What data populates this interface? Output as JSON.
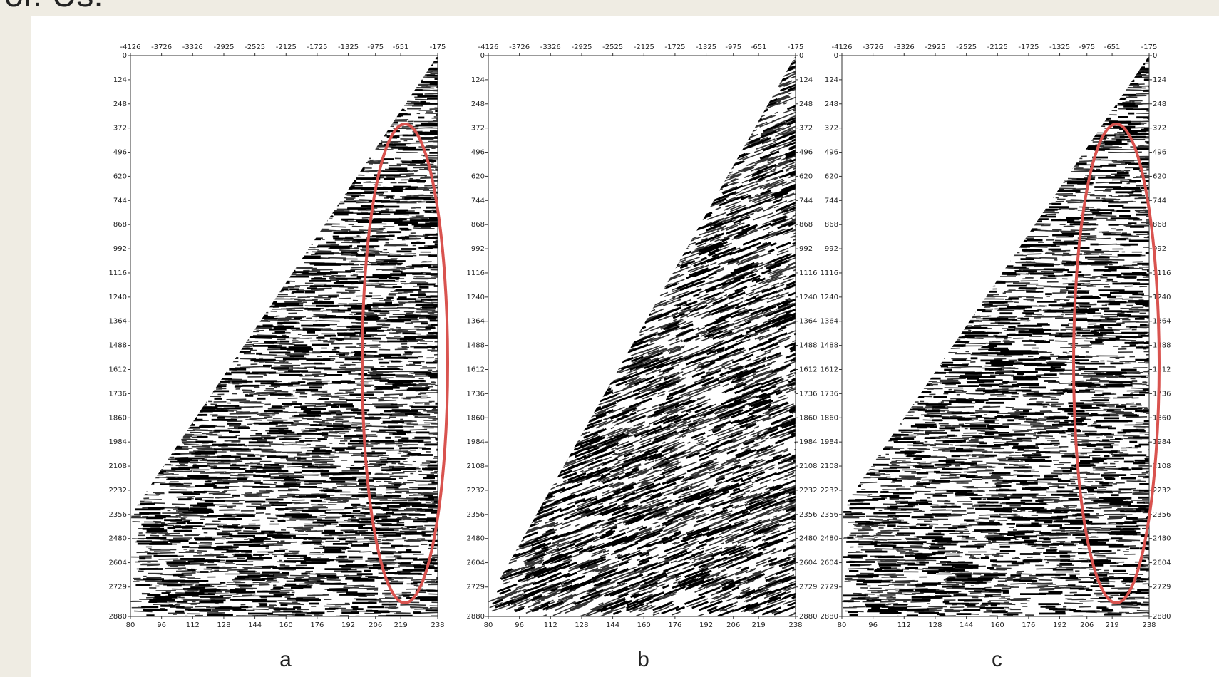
{
  "header": {
    "title": "or. Us."
  },
  "panels": [
    {
      "caption": "a",
      "right_axis": false,
      "top_ticks": [
        -4126,
        -3726,
        -3326,
        -2925,
        -2525,
        -2125,
        -1725,
        -1325,
        -975,
        -651,
        -175
      ],
      "left_ticks": [
        0,
        124,
        248,
        372,
        496,
        620,
        744,
        868,
        992,
        1116,
        1240,
        1364,
        1488,
        1612,
        1736,
        1860,
        1984,
        2108,
        2232,
        2356,
        2480,
        2604,
        2729,
        2880
      ],
      "bottom_ticks": [
        80,
        96,
        112,
        128,
        144,
        160,
        176,
        192,
        206,
        219,
        238
      ]
    },
    {
      "caption": "b",
      "right_axis": true,
      "top_ticks": [
        -4126,
        -3726,
        -3326,
        -2925,
        -2525,
        -2125,
        -1725,
        -1325,
        -975,
        -651,
        -175
      ],
      "left_ticks": [
        0,
        124,
        248,
        372,
        496,
        620,
        744,
        868,
        992,
        1116,
        1240,
        1364,
        1488,
        1612,
        1736,
        1860,
        1984,
        2108,
        2232,
        2356,
        2480,
        2604,
        2729,
        2880
      ],
      "bottom_ticks": [
        80,
        96,
        112,
        128,
        144,
        160,
        176,
        192,
        206,
        219,
        238
      ]
    },
    {
      "caption": "c",
      "right_axis": true,
      "top_ticks": [
        -4126,
        -3726,
        -3326,
        -2925,
        -2525,
        -2125,
        -1725,
        -1325,
        -975,
        -651,
        -175
      ],
      "left_ticks": [
        0,
        124,
        248,
        372,
        496,
        620,
        744,
        868,
        992,
        1116,
        1240,
        1364,
        1488,
        1612,
        1736,
        1860,
        1984,
        2108,
        2232,
        2356,
        2480,
        2604,
        2729,
        2880
      ],
      "bottom_ticks": [
        80,
        96,
        112,
        128,
        144,
        160,
        176,
        192,
        206,
        219,
        238
      ]
    }
  ]
}
